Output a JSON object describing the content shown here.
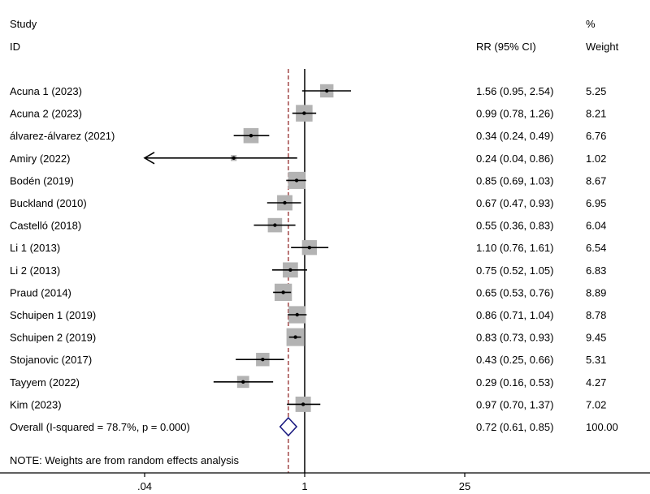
{
  "header": {
    "study_line1": "Study",
    "study_line2": "ID",
    "rr_label": "RR (95% CI)",
    "weight_line1": "%",
    "weight_line2": "Weight"
  },
  "note": "NOTE: Weights are from random effects analysis",
  "colors": {
    "box": "#b3b3b3",
    "ci_line": "#000000",
    "null_line": "#000000",
    "overall_line": "#8b1a1a",
    "diamond": "#1a1a80"
  },
  "chart_data": {
    "type": "forest",
    "x_scale": "log",
    "x_ticks": [
      {
        "value": 0.04,
        "label": ".04"
      },
      {
        "value": 1,
        "label": "1"
      },
      {
        "value": 25,
        "label": "25"
      }
    ],
    "null_value": 1,
    "studies": [
      {
        "label": "Acuna 1 (2023)",
        "rr": 1.56,
        "lo": 0.95,
        "hi": 2.54,
        "rr_text": "1.56 (0.95, 2.54)",
        "weight": 5.25,
        "weight_text": "5.25"
      },
      {
        "label": "Acuna 2 (2023)",
        "rr": 0.99,
        "lo": 0.78,
        "hi": 1.26,
        "rr_text": "0.99 (0.78, 1.26)",
        "weight": 8.21,
        "weight_text": "8.21"
      },
      {
        "label": "álvarez-álvarez (2021)",
        "rr": 0.34,
        "lo": 0.24,
        "hi": 0.49,
        "rr_text": "0.34 (0.24, 0.49)",
        "weight": 6.76,
        "weight_text": "6.76"
      },
      {
        "label": "Amiry  (2022)",
        "rr": 0.24,
        "lo": 0.04,
        "hi": 0.86,
        "rr_text": "0.24 (0.04, 0.86)",
        "weight": 1.02,
        "weight_text": "1.02",
        "lo_arrow": true
      },
      {
        "label": "Bodén  (2019)",
        "rr": 0.85,
        "lo": 0.69,
        "hi": 1.03,
        "rr_text": "0.85 (0.69, 1.03)",
        "weight": 8.67,
        "weight_text": "8.67"
      },
      {
        "label": "Buckland  (2010)",
        "rr": 0.67,
        "lo": 0.47,
        "hi": 0.93,
        "rr_text": "0.67 (0.47, 0.93)",
        "weight": 6.95,
        "weight_text": "6.95"
      },
      {
        "label": "Castelló  (2018)",
        "rr": 0.55,
        "lo": 0.36,
        "hi": 0.83,
        "rr_text": "0.55 (0.36, 0.83)",
        "weight": 6.04,
        "weight_text": "6.04"
      },
      {
        "label": "Li 1 (2013)",
        "rr": 1.1,
        "lo": 0.76,
        "hi": 1.61,
        "rr_text": "1.10 (0.76, 1.61)",
        "weight": 6.54,
        "weight_text": "6.54"
      },
      {
        "label": "Li 2 (2013)",
        "rr": 0.75,
        "lo": 0.52,
        "hi": 1.05,
        "rr_text": "0.75 (0.52, 1.05)",
        "weight": 6.83,
        "weight_text": "6.83"
      },
      {
        "label": "Praud (2014)",
        "rr": 0.65,
        "lo": 0.53,
        "hi": 0.76,
        "rr_text": "0.65 (0.53, 0.76)",
        "weight": 8.89,
        "weight_text": "8.89"
      },
      {
        "label": "Schuipen 1 (2019)",
        "rr": 0.86,
        "lo": 0.71,
        "hi": 1.04,
        "rr_text": "0.86 (0.71, 1.04)",
        "weight": 8.78,
        "weight_text": "8.78"
      },
      {
        "label": "Schuipen 2 (2019)",
        "rr": 0.83,
        "lo": 0.73,
        "hi": 0.93,
        "rr_text": "0.83 (0.73, 0.93)",
        "weight": 9.45,
        "weight_text": "9.45"
      },
      {
        "label": "Stojanovic  (2017)",
        "rr": 0.43,
        "lo": 0.25,
        "hi": 0.66,
        "rr_text": "0.43 (0.25, 0.66)",
        "weight": 5.31,
        "weight_text": "5.31"
      },
      {
        "label": "Tayyem (2022)",
        "rr": 0.29,
        "lo": 0.16,
        "hi": 0.53,
        "rr_text": "0.29 (0.16, 0.53)",
        "weight": 4.27,
        "weight_text": "4.27"
      },
      {
        "label": "Kim (2023)",
        "rr": 0.97,
        "lo": 0.7,
        "hi": 1.37,
        "rr_text": "0.97 (0.70, 1.37)",
        "weight": 7.02,
        "weight_text": "7.02"
      }
    ],
    "overall": {
      "label": "Overall  (I-squared = 78.7%, p = 0.000)",
      "rr": 0.72,
      "lo": 0.61,
      "hi": 0.85,
      "rr_text": "0.72 (0.61, 0.85)",
      "weight": 100.0,
      "weight_text": "100.00"
    }
  }
}
